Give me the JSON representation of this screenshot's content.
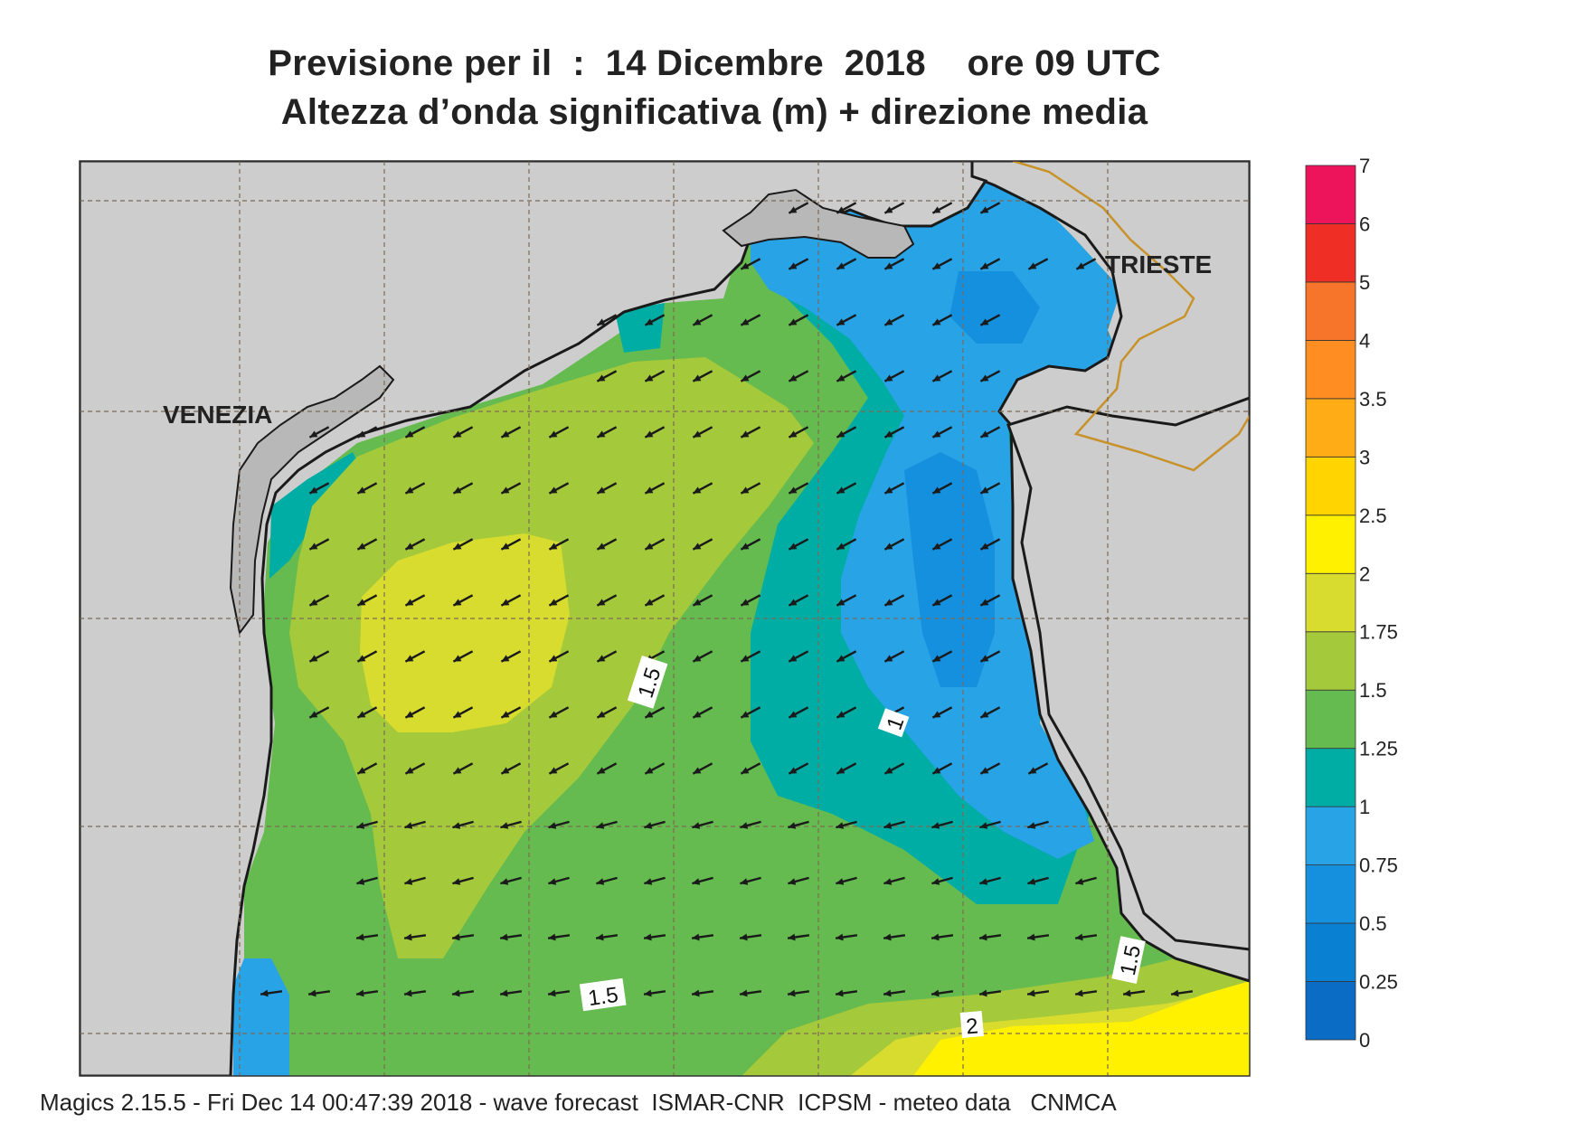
{
  "header": {
    "title_line1": "Previsione per il  :  14 Dicembre  2018    ore 09 UTC",
    "title_line2": "Altezza d’onda significativa (m) + direzione media"
  },
  "map": {
    "labels": {
      "city_west": "VENEZIA",
      "city_east": "TRIESTE"
    },
    "contour_labels": [
      "1.5",
      "1",
      "1.5",
      "1.5",
      "2"
    ],
    "land_color": "#cdcdcd",
    "border_color": "#c8922a",
    "arrow_direction": "toward west-southwest"
  },
  "legend": {
    "ticks": [
      "0",
      "0.25",
      "0.5",
      "0.75",
      "1",
      "1.25",
      "1.5",
      "1.75",
      "2",
      "2.5",
      "3",
      "3.5",
      "4",
      "5",
      "6",
      "7"
    ],
    "colors": [
      "#0a6cc4",
      "#0a80d2",
      "#1590de",
      "#27a3e6",
      "#00ada5",
      "#65bb4f",
      "#a4c93b",
      "#d8dc2f",
      "#fff100",
      "#ffd400",
      "#ffac16",
      "#ff8d22",
      "#f7752a",
      "#ef2f25",
      "#ed145b"
    ]
  },
  "footer": {
    "text": "Magics 2.15.5 - Fri Dec 14 00:47:39 2018 - wave forecast  ISMAR-CNR  ICPSM - meteo data   CNMCA"
  }
}
